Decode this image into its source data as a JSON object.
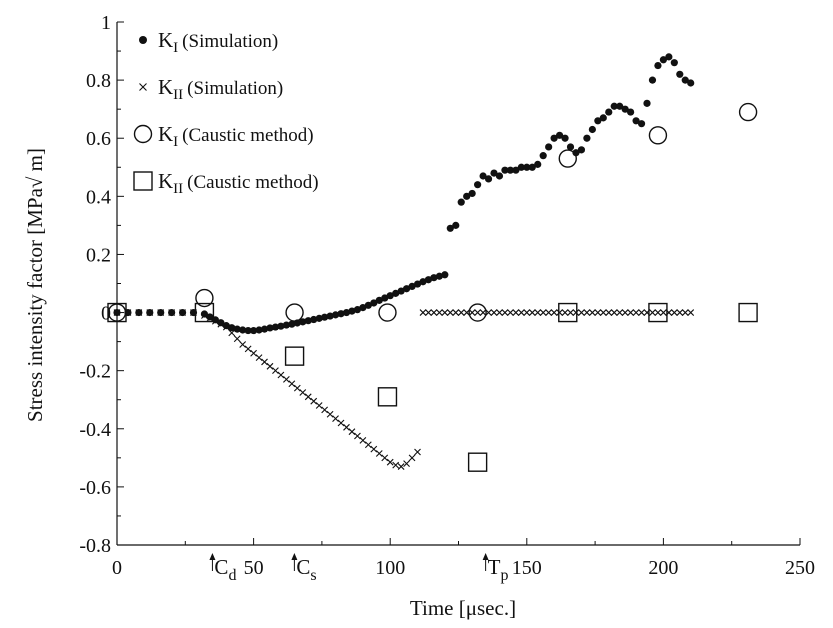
{
  "chart_data": {
    "type": "scatter",
    "xlabel": "Time [μsec.]",
    "ylabel": "Stress intensity factor [MPa√ m]",
    "xlim": [
      0,
      250
    ],
    "ylim": [
      -0.8,
      1
    ],
    "xticks": [
      0,
      50,
      100,
      150,
      200,
      250
    ],
    "yticks": [
      -0.8,
      -0.6,
      -0.4,
      -0.2,
      0,
      0.2,
      0.4,
      0.6,
      0.8,
      1
    ],
    "ytick_labels": [
      "-0.8",
      "-0.6",
      "-0.4",
      "-0.2",
      "0",
      "0.2",
      "0.4",
      "0.6",
      "0.8",
      "1"
    ],
    "xtick_labels": [
      "0",
      "50",
      "100",
      "150",
      "200",
      "250"
    ],
    "grid": false,
    "legend_position": "top-left",
    "series": [
      {
        "name": "K_I (Simulation)",
        "marker": "dot",
        "x": [
          0,
          4,
          8,
          12,
          16,
          20,
          24,
          28,
          32,
          34,
          36,
          38,
          40,
          42,
          44,
          46,
          48,
          50,
          52,
          54,
          56,
          58,
          60,
          62,
          64,
          66,
          68,
          70,
          72,
          74,
          76,
          78,
          80,
          82,
          84,
          86,
          88,
          90,
          92,
          94,
          96,
          98,
          100,
          102,
          104,
          106,
          108,
          110,
          112,
          114,
          116,
          118,
          120,
          122,
          124,
          126,
          128,
          130,
          132,
          134,
          136,
          138,
          140,
          142,
          144,
          146,
          148,
          150,
          152,
          154,
          156,
          158,
          160,
          162,
          164,
          166,
          168,
          170,
          172,
          174,
          176,
          178,
          180,
          182,
          184,
          186,
          188,
          190,
          192,
          194,
          196,
          198,
          200,
          202,
          204,
          206,
          208,
          210
        ],
        "y": [
          0,
          0,
          0,
          0,
          0,
          0,
          0,
          0,
          -0.005,
          -0.015,
          -0.025,
          -0.035,
          -0.045,
          -0.052,
          -0.057,
          -0.06,
          -0.062,
          -0.062,
          -0.06,
          -0.057,
          -0.053,
          -0.05,
          -0.047,
          -0.043,
          -0.04,
          -0.036,
          -0.032,
          -0.028,
          -0.024,
          -0.02,
          -0.016,
          -0.012,
          -0.008,
          -0.004,
          0,
          0.005,
          0.01,
          0.017,
          0.025,
          0.033,
          0.042,
          0.05,
          0.058,
          0.066,
          0.074,
          0.082,
          0.09,
          0.098,
          0.106,
          0.113,
          0.12,
          0.125,
          0.13,
          0.29,
          0.3,
          0.38,
          0.4,
          0.41,
          0.44,
          0.47,
          0.46,
          0.48,
          0.47,
          0.49,
          0.49,
          0.49,
          0.5,
          0.5,
          0.5,
          0.51,
          0.54,
          0.57,
          0.6,
          0.61,
          0.6,
          0.57,
          0.55,
          0.56,
          0.6,
          0.63,
          0.66,
          0.67,
          0.69,
          0.71,
          0.71,
          0.7,
          0.69,
          0.66,
          0.65,
          0.72,
          0.8,
          0.85,
          0.87,
          0.88,
          0.86,
          0.82,
          0.8,
          0.79
        ]
      },
      {
        "name": "K_II (Simulation)",
        "marker": "x",
        "x": [
          0,
          4,
          8,
          12,
          16,
          20,
          24,
          28,
          32,
          34,
          36,
          38,
          40,
          42,
          44,
          46,
          48,
          50,
          52,
          54,
          56,
          58,
          60,
          62,
          64,
          66,
          68,
          70,
          72,
          74,
          76,
          78,
          80,
          82,
          84,
          86,
          88,
          90,
          92,
          94,
          96,
          98,
          100,
          102,
          104,
          106,
          108,
          110,
          112,
          114,
          116,
          118,
          120,
          122,
          124,
          126,
          128,
          130,
          132,
          134,
          136,
          138,
          140,
          142,
          144,
          146,
          148,
          150,
          152,
          154,
          156,
          158,
          160,
          162,
          164,
          166,
          168,
          170,
          172,
          174,
          176,
          178,
          180,
          182,
          184,
          186,
          188,
          190,
          192,
          194,
          196,
          198,
          200,
          202,
          204,
          206,
          208,
          210
        ],
        "y": [
          0,
          0,
          0,
          0,
          0,
          0,
          0,
          0,
          -0.01,
          -0.02,
          -0.03,
          -0.04,
          -0.05,
          -0.07,
          -0.09,
          -0.11,
          -0.125,
          -0.14,
          -0.155,
          -0.17,
          -0.185,
          -0.2,
          -0.215,
          -0.23,
          -0.245,
          -0.26,
          -0.275,
          -0.29,
          -0.305,
          -0.32,
          -0.335,
          -0.35,
          -0.365,
          -0.38,
          -0.395,
          -0.41,
          -0.425,
          -0.44,
          -0.455,
          -0.47,
          -0.485,
          -0.5,
          -0.515,
          -0.525,
          -0.53,
          -0.52,
          -0.5,
          -0.48,
          0,
          0,
          0,
          0,
          0,
          0,
          0,
          0,
          0,
          0,
          0,
          0,
          0,
          0,
          0,
          0,
          0,
          0,
          0,
          0,
          0,
          0,
          0,
          0,
          0,
          0,
          0,
          0,
          0,
          0,
          0,
          0,
          0,
          0,
          0,
          0,
          0,
          0,
          0,
          0,
          0,
          0,
          0,
          0,
          0,
          0,
          0,
          0,
          0,
          0
        ]
      },
      {
        "name": "K_I (Caustic method)",
        "marker": "circle",
        "x": [
          0,
          32,
          65,
          99,
          132,
          165,
          198,
          231
        ],
        "y": [
          0,
          0.05,
          0,
          0,
          0,
          0.53,
          0.61,
          0.69
        ]
      },
      {
        "name": "K_II (Caustic method)",
        "marker": "square",
        "x": [
          0,
          32,
          65,
          99,
          132,
          165,
          198,
          231
        ],
        "y": [
          0,
          0,
          -0.15,
          -0.29,
          -0.515,
          0,
          0,
          0
        ]
      }
    ],
    "legend": [
      {
        "main": "K",
        "sub": "I",
        "rest": "(Simulation)",
        "marker": "dot"
      },
      {
        "main": "K",
        "sub": "II",
        "rest": "(Simulation)",
        "marker": "x"
      },
      {
        "main": "K",
        "sub": "I",
        "rest": "(Caustic method)",
        "marker": "circle"
      },
      {
        "main": "K",
        "sub": "II",
        "rest": "(Caustic method)",
        "marker": "square"
      }
    ],
    "time_markers": [
      {
        "main": "C",
        "sub": "d",
        "x": 32
      },
      {
        "main": "C",
        "sub": "s",
        "x": 62
      },
      {
        "main": "T",
        "sub": "p",
        "x": 132
      }
    ]
  }
}
